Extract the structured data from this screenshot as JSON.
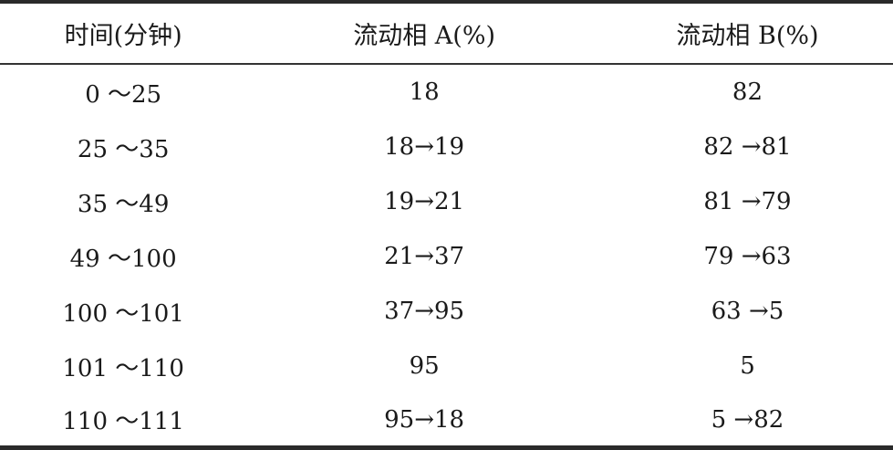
{
  "table": {
    "headers": [
      "时间(分钟)",
      "流动相 A(%)",
      "流动相 B(%)"
    ],
    "rows": [
      [
        "0 ～25",
        "18",
        "82"
      ],
      [
        "25 ～35",
        "18→19",
        "82 →81"
      ],
      [
        "35 ～49",
        "19→21",
        "81 →79"
      ],
      [
        "49 ～100",
        "21→37",
        "79 →63"
      ],
      [
        "100 ～101",
        "37→95",
        "63 →5"
      ],
      [
        "101 ～110",
        "95",
        "5"
      ],
      [
        "110 ～111",
        "95→18",
        "5 →82"
      ]
    ]
  }
}
